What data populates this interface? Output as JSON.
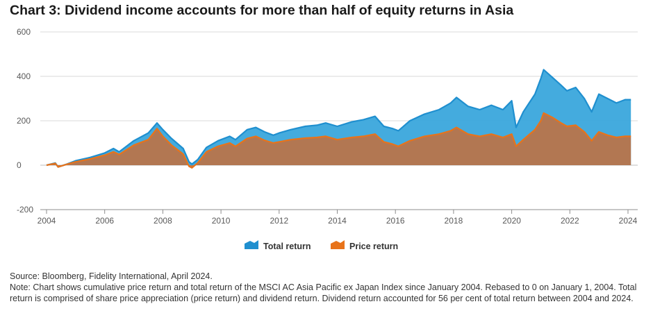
{
  "title": "Chart 3: Dividend income accounts for more than half of equity returns in Asia",
  "source": "Source: Bloomberg, Fidelity International, April 2024.",
  "note": "Note: Chart shows cumulative price return and total return of the MSCI AC Asia Pacific ex Japan Index since January 2004. Rebased to 0 on January 1, 2004. Total return is comprised of share price appreciation (price return) and dividend return. Dividend return accounted for 56 per cent of total return between 2004 and 2024.",
  "colors": {
    "total": "#1f8fcf",
    "total_fill": "#3aa6dc",
    "price": "#e8731a",
    "price_fill": "#b8744a",
    "grid": "#d9d9d9",
    "zero": "#bfbfbf"
  },
  "chart_data": {
    "type": "area",
    "title": "Chart 3: Dividend income accounts for more than half of equity returns in Asia",
    "xlabel": "",
    "ylabel": "",
    "xlim": [
      2004.0,
      2024.2
    ],
    "ylim": [
      -200,
      600
    ],
    "yticks": [
      -200,
      0,
      200,
      400,
      600
    ],
    "xticks": [
      2004,
      2006,
      2008,
      2010,
      2012,
      2014,
      2016,
      2018,
      2020,
      2022,
      2024
    ],
    "grid": true,
    "legend": "bottom-center",
    "x": [
      2004.0,
      2004.3,
      2004.4,
      2004.7,
      2005.0,
      2005.5,
      2006.0,
      2006.3,
      2006.5,
      2007.0,
      2007.5,
      2007.8,
      2008.0,
      2008.3,
      2008.7,
      2008.9,
      2009.0,
      2009.2,
      2009.5,
      2009.9,
      2010.3,
      2010.5,
      2010.9,
      2011.2,
      2011.5,
      2011.8,
      2012.0,
      2012.4,
      2012.9,
      2013.3,
      2013.6,
      2014.0,
      2014.5,
      2014.9,
      2015.3,
      2015.6,
      2015.9,
      2016.1,
      2016.5,
      2017.0,
      2017.5,
      2017.9,
      2018.1,
      2018.5,
      2018.9,
      2019.3,
      2019.7,
      2020.0,
      2020.15,
      2020.4,
      2020.8,
      2021.0,
      2021.1,
      2021.4,
      2021.7,
      2021.9,
      2022.2,
      2022.5,
      2022.75,
      2023.0,
      2023.3,
      2023.6,
      2023.9,
      2024.1
    ],
    "series": [
      {
        "name": "Total return",
        "values": [
          0,
          10,
          -8,
          5,
          20,
          35,
          55,
          75,
          60,
          110,
          145,
          190,
          160,
          120,
          75,
          15,
          5,
          25,
          80,
          110,
          130,
          115,
          160,
          170,
          150,
          135,
          145,
          160,
          175,
          180,
          190,
          175,
          195,
          205,
          220,
          175,
          165,
          155,
          200,
          230,
          250,
          280,
          305,
          265,
          250,
          270,
          250,
          290,
          170,
          240,
          320,
          390,
          430,
          395,
          360,
          335,
          350,
          300,
          240,
          320,
          300,
          280,
          295,
          295
        ]
      },
      {
        "name": "Price return",
        "values": [
          0,
          8,
          -8,
          4,
          15,
          28,
          45,
          60,
          48,
          90,
          115,
          165,
          130,
          90,
          50,
          -5,
          -12,
          10,
          60,
          85,
          100,
          85,
          120,
          130,
          112,
          100,
          105,
          115,
          122,
          125,
          130,
          115,
          125,
          130,
          140,
          105,
          95,
          85,
          110,
          130,
          140,
          155,
          170,
          140,
          130,
          140,
          125,
          140,
          85,
          115,
          160,
          200,
          235,
          215,
          190,
          175,
          180,
          150,
          110,
          150,
          135,
          125,
          130,
          130
        ]
      }
    ]
  },
  "legend": [
    {
      "label": "Total return",
      "color": "#1f8fcf"
    },
    {
      "label": "Price return",
      "color": "#e8731a"
    }
  ]
}
